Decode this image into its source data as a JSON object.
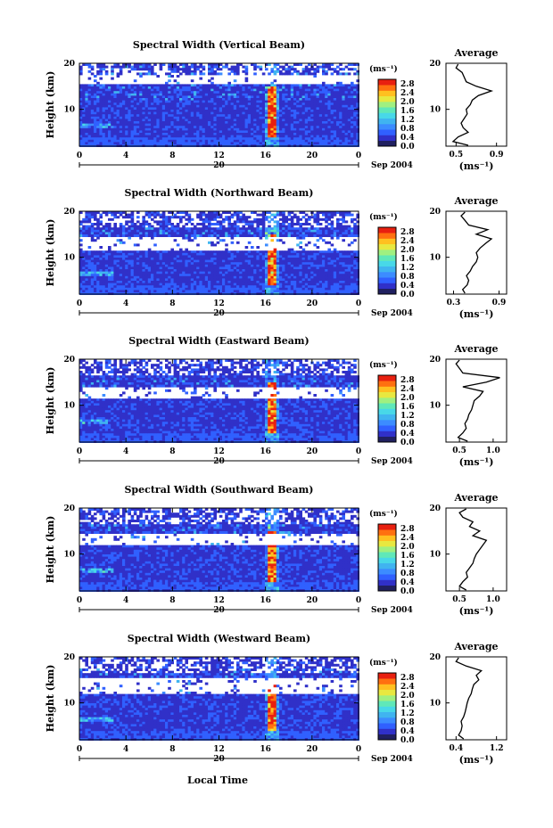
{
  "figure": {
    "bottom_xlabel": "Local Time",
    "average_title": "Average",
    "average_xlabel": "(ms⁻¹)"
  },
  "colorbar": {
    "unit": "(ms⁻¹)",
    "ticks": [
      "0.0",
      "0.4",
      "0.8",
      "1.2",
      "1.6",
      "2.0",
      "2.4",
      "2.8"
    ],
    "colors": [
      "#202060",
      "#3030c8",
      "#3060ff",
      "#3c8cff",
      "#40b4f0",
      "#48d8e8",
      "#60e8b8",
      "#a0f080",
      "#e8e840",
      "#ffc020",
      "#ff7010",
      "#e82010"
    ]
  },
  "chart_data": [
    {
      "type": "heatmap",
      "title": "Spectral Width (Vertical Beam)",
      "ylabel": "Height (km)",
      "xticks": [
        "0",
        "4",
        "8",
        "12",
        "16",
        "20",
        "0"
      ],
      "yticks": [
        "10",
        "20"
      ],
      "xlim": [
        0,
        24
      ],
      "ylim": [
        2,
        20
      ],
      "date_day": "20",
      "date_month": "Sep 2004",
      "notes": {
        "gap_low": 15.5,
        "gap_high": 17.5
      },
      "average": {
        "xticks": [
          "0.5",
          "0.9"
        ],
        "xlim": [
          0.4,
          1.0
        ],
        "height": [
          2.2,
          3.0,
          4.0,
          5.0,
          6.0,
          7.0,
          8.0,
          9.0,
          10.0,
          11.0,
          12.0,
          13.0,
          14.0,
          15.0,
          16.0,
          17.0,
          18.0,
          19.0,
          19.8
        ],
        "value": [
          0.62,
          0.47,
          0.52,
          0.62,
          0.57,
          0.55,
          0.58,
          0.61,
          0.6,
          0.64,
          0.66,
          0.72,
          0.85,
          0.7,
          0.6,
          0.58,
          0.56,
          0.5,
          0.52
        ]
      }
    },
    {
      "type": "heatmap",
      "title": "Spectral Width (Northward Beam)",
      "ylabel": "Height (km)",
      "xticks": [
        "0",
        "4",
        "8",
        "12",
        "16",
        "20",
        "0"
      ],
      "yticks": [
        "10",
        "20"
      ],
      "xlim": [
        0,
        24
      ],
      "ylim": [
        2,
        20
      ],
      "date_day": "20",
      "date_month": "Sep 2004",
      "notes": {
        "gap_low": 11.5,
        "gap_high": 14.5
      },
      "average": {
        "xticks": [
          "0.3",
          "0.9"
        ],
        "xlim": [
          0.2,
          1.0
        ],
        "height": [
          2.2,
          3.0,
          4.0,
          5.0,
          6.0,
          7.0,
          8.0,
          9.0,
          10.0,
          11.0,
          12.0,
          13.0,
          14.0,
          15.0,
          16.0,
          17.0,
          18.0,
          19.0,
          19.8
        ],
        "value": [
          0.45,
          0.42,
          0.48,
          0.5,
          0.47,
          0.52,
          0.55,
          0.6,
          0.62,
          0.6,
          0.65,
          0.72,
          0.8,
          0.6,
          0.75,
          0.5,
          0.45,
          0.4,
          0.45
        ]
      }
    },
    {
      "type": "heatmap",
      "title": "Spectral Width (Eastward Beam)",
      "ylabel": "Height (km)",
      "xticks": [
        "0",
        "4",
        "8",
        "12",
        "16",
        "20",
        "0"
      ],
      "yticks": [
        "10",
        "20"
      ],
      "xlim": [
        0,
        24
      ],
      "ylim": [
        2,
        20
      ],
      "date_day": "20",
      "date_month": "Sep 2004",
      "notes": {
        "gap_low": 11.2,
        "gap_high": 13.8
      },
      "average": {
        "xticks": [
          "0.5",
          "1.0"
        ],
        "xlim": [
          0.3,
          1.2
        ],
        "height": [
          2.2,
          3.0,
          4.0,
          5.0,
          6.0,
          7.0,
          8.0,
          9.0,
          10.0,
          11.0,
          12.0,
          13.0,
          14.0,
          15.0,
          16.0,
          17.0,
          18.0,
          19.0,
          19.8
        ],
        "value": [
          0.62,
          0.48,
          0.55,
          0.6,
          0.58,
          0.62,
          0.64,
          0.68,
          0.7,
          0.72,
          0.8,
          0.85,
          0.55,
          0.9,
          1.1,
          0.55,
          0.5,
          0.45,
          0.5
        ]
      }
    },
    {
      "type": "heatmap",
      "title": "Spectral Width (Southward Beam)",
      "ylabel": "Height (km)",
      "xticks": [
        "0",
        "4",
        "8",
        "12",
        "16",
        "20",
        "0"
      ],
      "yticks": [
        "10",
        "20"
      ],
      "xlim": [
        0,
        24
      ],
      "ylim": [
        2,
        20
      ],
      "date_day": "20",
      "date_month": "Sep 2004",
      "notes": {
        "gap_low": 12.0,
        "gap_high": 14.5
      },
      "average": {
        "xticks": [
          "0.5",
          "1.0"
        ],
        "xlim": [
          0.3,
          1.2
        ],
        "height": [
          2.2,
          3.0,
          4.0,
          5.0,
          6.0,
          7.0,
          8.0,
          9.0,
          10.0,
          11.0,
          12.0,
          13.0,
          14.0,
          15.0,
          16.0,
          17.0,
          18.0,
          19.0,
          19.8
        ],
        "value": [
          0.6,
          0.5,
          0.55,
          0.62,
          0.6,
          0.65,
          0.7,
          0.72,
          0.75,
          0.8,
          0.85,
          0.9,
          0.7,
          0.8,
          0.65,
          0.7,
          0.55,
          0.5,
          0.6
        ]
      }
    },
    {
      "type": "heatmap",
      "title": "Spectral Width (Westward Beam)",
      "ylabel": "Height (km)",
      "xticks": [
        "0",
        "4",
        "8",
        "12",
        "16",
        "20",
        "0"
      ],
      "yticks": [
        "10",
        "20"
      ],
      "xlim": [
        0,
        24
      ],
      "ylim": [
        2,
        20
      ],
      "date_day": "20",
      "date_month": "Sep 2004",
      "notes": {
        "gap_low": 12.0,
        "gap_high": 15.5
      },
      "average": {
        "xticks": [
          "0.4",
          "1.2"
        ],
        "xlim": [
          0.2,
          1.4
        ],
        "height": [
          2.2,
          3.0,
          4.0,
          5.0,
          6.0,
          7.0,
          8.0,
          9.0,
          10.0,
          11.0,
          12.0,
          13.0,
          14.0,
          15.0,
          16.0,
          17.0,
          18.0,
          19.0,
          19.8
        ],
        "value": [
          0.55,
          0.45,
          0.5,
          0.52,
          0.5,
          0.55,
          0.58,
          0.6,
          0.62,
          0.65,
          0.7,
          0.72,
          0.75,
          0.85,
          0.8,
          0.9,
          0.6,
          0.4,
          0.45
        ]
      }
    }
  ]
}
